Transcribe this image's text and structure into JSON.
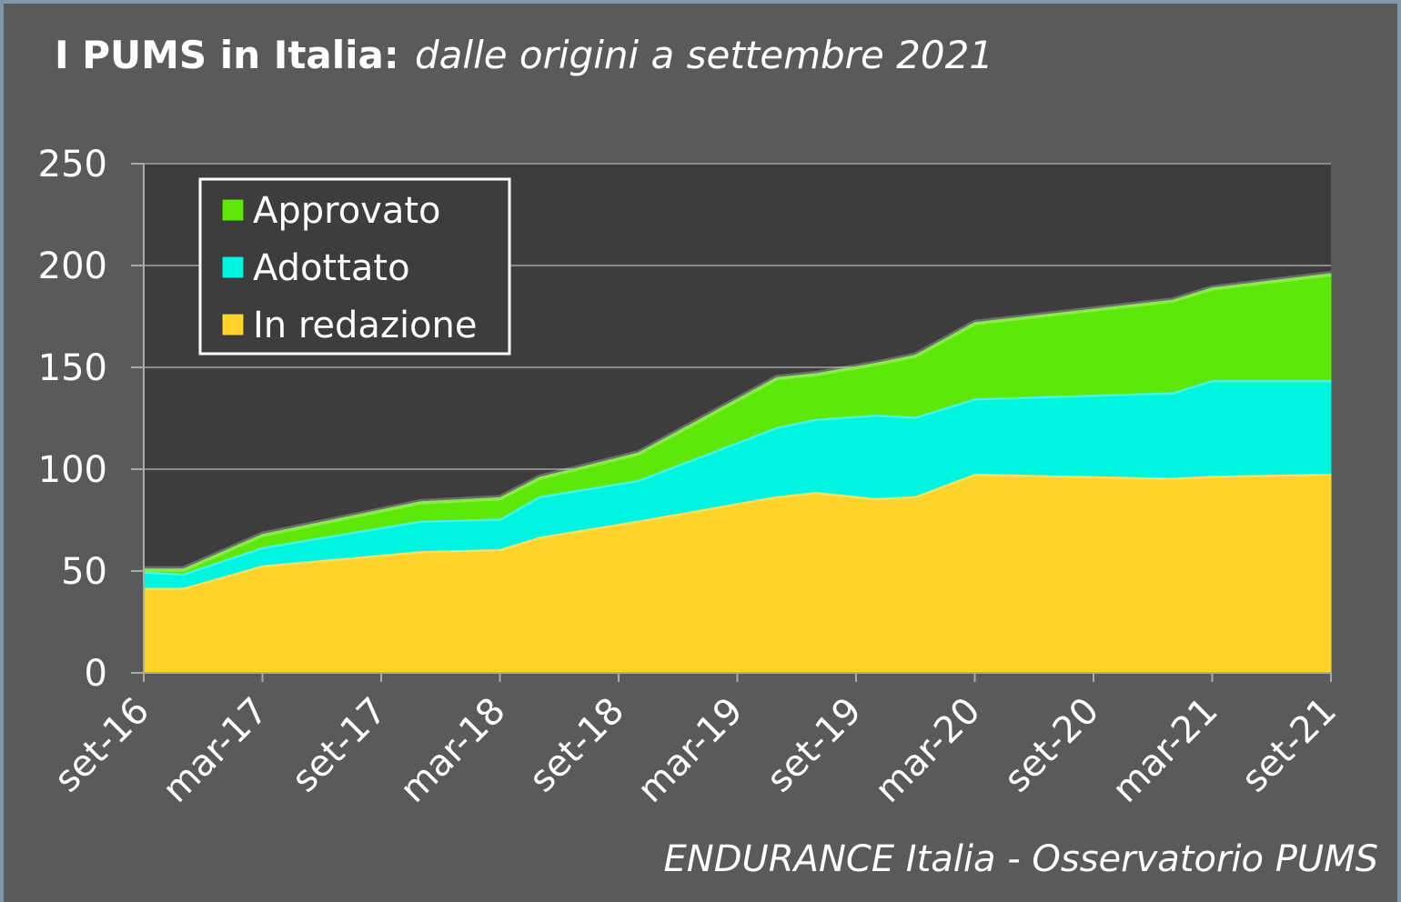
{
  "chart_data": {
    "type": "stacked_area",
    "title": "I PUMS in Italia:",
    "subtitle": "dalle origini a settembre 2021",
    "source": "ENDURANCE Italia - Osservatorio PUMS",
    "x": [
      "set-16",
      "nov-16",
      "mar-17",
      "nov-17",
      "mar-18",
      "mag-18",
      "ott-18",
      "mag-19",
      "lug-19",
      "ott-19",
      "dic-19",
      "mar-20",
      "gen-21",
      "mar-21",
      "set-21"
    ],
    "xticks": [
      "set-16",
      "mar-17",
      "set-17",
      "mar-18",
      "set-18",
      "mar-19",
      "set-19",
      "mar-20",
      "set-20",
      "mar-21",
      "set-21"
    ],
    "series": [
      {
        "name": "In redazione",
        "color": "#ffd42a",
        "values": [
          42,
          42,
          53,
          60,
          61,
          67,
          75,
          87,
          89,
          86,
          87,
          98,
          96,
          97,
          98
        ]
      },
      {
        "name": "Adottato",
        "color": "#00f5e0",
        "values": [
          8,
          7,
          9,
          15,
          15,
          20,
          20,
          34,
          36,
          41,
          39,
          37,
          42,
          47,
          46
        ]
      },
      {
        "name": "Approvato",
        "color": "#5ee80a",
        "values": [
          1,
          2,
          6,
          9,
          10,
          9,
          13,
          24,
          22,
          25,
          30,
          37,
          45,
          45,
          52
        ]
      }
    ],
    "ylim": [
      0,
      250
    ],
    "yticks": [
      0,
      50,
      100,
      150,
      200,
      250
    ],
    "grid": true,
    "legend": "upper left"
  }
}
